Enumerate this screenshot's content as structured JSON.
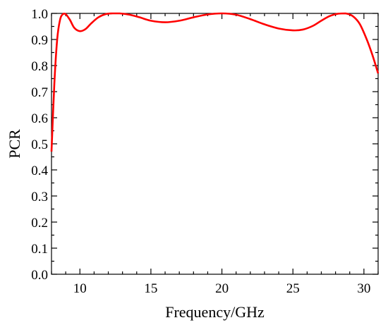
{
  "chart_data": {
    "type": "line",
    "title": "",
    "xlabel": "Frequency/GHz",
    "ylabel": "PCR",
    "xlim": [
      8,
      31
    ],
    "ylim": [
      0,
      1.0
    ],
    "x_ticks": [
      10,
      15,
      20,
      25,
      30
    ],
    "x_tick_labels": [
      "10",
      "15",
      "20",
      "25",
      "30"
    ],
    "y_ticks": [
      0,
      0.1,
      0.2,
      0.3,
      0.4,
      0.5,
      0.6,
      0.7,
      0.8,
      0.9,
      1.0
    ],
    "y_tick_labels": [
      "0.0",
      "0.1",
      "0.2",
      "0.3",
      "0.4",
      "0.5",
      "0.6",
      "0.7",
      "0.8",
      "0.9",
      "1.0"
    ],
    "grid": false,
    "legend": "none",
    "series": [
      {
        "color": "#ff0000",
        "x": [
          8.0,
          8.2,
          8.4,
          8.6,
          8.8,
          9.0,
          9.3,
          9.6,
          10.0,
          10.4,
          10.8,
          11.3,
          11.8,
          12.3,
          12.8,
          13.5,
          14.2,
          15.0,
          16.0,
          17.0,
          18.0,
          19.0,
          20.0,
          21.0,
          22.0,
          23.0,
          24.0,
          25.0,
          25.7,
          26.4,
          27.0,
          27.6,
          28.2,
          28.7,
          29.2,
          29.7,
          30.2,
          30.6,
          31.0
        ],
        "y": [
          0.47,
          0.73,
          0.9,
          0.975,
          0.997,
          0.997,
          0.975,
          0.945,
          0.932,
          0.94,
          0.962,
          0.985,
          0.997,
          1.0,
          1.0,
          0.995,
          0.985,
          0.972,
          0.966,
          0.972,
          0.985,
          0.996,
          1.0,
          0.995,
          0.978,
          0.958,
          0.942,
          0.935,
          0.938,
          0.952,
          0.972,
          0.99,
          0.999,
          1.0,
          0.99,
          0.96,
          0.9,
          0.84,
          0.77
        ]
      }
    ]
  }
}
